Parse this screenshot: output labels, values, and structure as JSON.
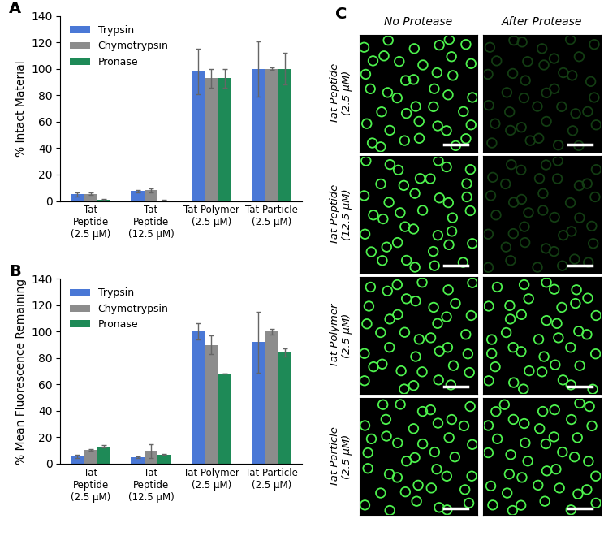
{
  "chart_data": [
    {
      "type": "bar",
      "panel": "A",
      "ylabel": "% Intact Material",
      "categories": [
        "Tat\nPeptide\n(2.5 µM)",
        "Tat\nPeptide\n(12.5 µM)",
        "Tat Polymer\n(2.5 µM)",
        "Tat Particle\n(2.5 µM)"
      ],
      "series": [
        {
          "name": "Trypsin",
          "color": "#4a78d6",
          "values": [
            5,
            7.5,
            98,
            100
          ],
          "error": [
            1.5,
            1,
            17,
            21
          ]
        },
        {
          "name": "Chymotrypsin",
          "color": "#8c8c8c",
          "values": [
            5.5,
            8,
            93,
            100
          ],
          "error": [
            1,
            1.5,
            7,
            1
          ]
        },
        {
          "name": "Pronase",
          "color": "#1e8a57",
          "values": [
            1,
            0.5,
            93,
            100
          ],
          "error": [
            0.5,
            0.3,
            7,
            12
          ]
        }
      ],
      "ylim": [
        0,
        140
      ],
      "yticks": [
        0,
        20,
        40,
        60,
        80,
        100,
        120,
        140
      ],
      "legend": "upper left"
    },
    {
      "type": "bar",
      "panel": "B",
      "ylabel": "% Mean Fluorescence Remaining",
      "categories": [
        "Tat\nPeptide\n(2.5 µM)",
        "Tat\nPeptide\n(12.5 µM)",
        "Tat Polymer\n(2.5 µM)",
        "Tat Particle\n(2.5 µM)"
      ],
      "series": [
        {
          "name": "Trypsin",
          "color": "#4a78d6",
          "values": [
            5.5,
            5,
            100,
            92
          ],
          "error": [
            1,
            0.5,
            6,
            23
          ]
        },
        {
          "name": "Chymotrypsin",
          "color": "#8c8c8c",
          "values": [
            10.5,
            9.5,
            90,
            100
          ],
          "error": [
            0.5,
            5,
            7,
            2
          ]
        },
        {
          "name": "Pronase",
          "color": "#1e8a57",
          "values": [
            13,
            7,
            68,
            84
          ],
          "error": [
            1,
            0.5,
            0,
            3
          ]
        }
      ],
      "ylim": [
        0,
        140
      ],
      "yticks": [
        0,
        20,
        40,
        60,
        80,
        100,
        120,
        140
      ],
      "legend": "upper left"
    }
  ],
  "images": {
    "panel": "C",
    "columns": [
      "No Protease",
      "After Protease"
    ],
    "rows": [
      "Tat Peptide\n(2.5 µM)",
      "Tat Peptide\n(12.5 µM)",
      "Tat Polymer\n(2.5 µM)",
      "Tat Particle\n(2.5 µM)"
    ]
  }
}
